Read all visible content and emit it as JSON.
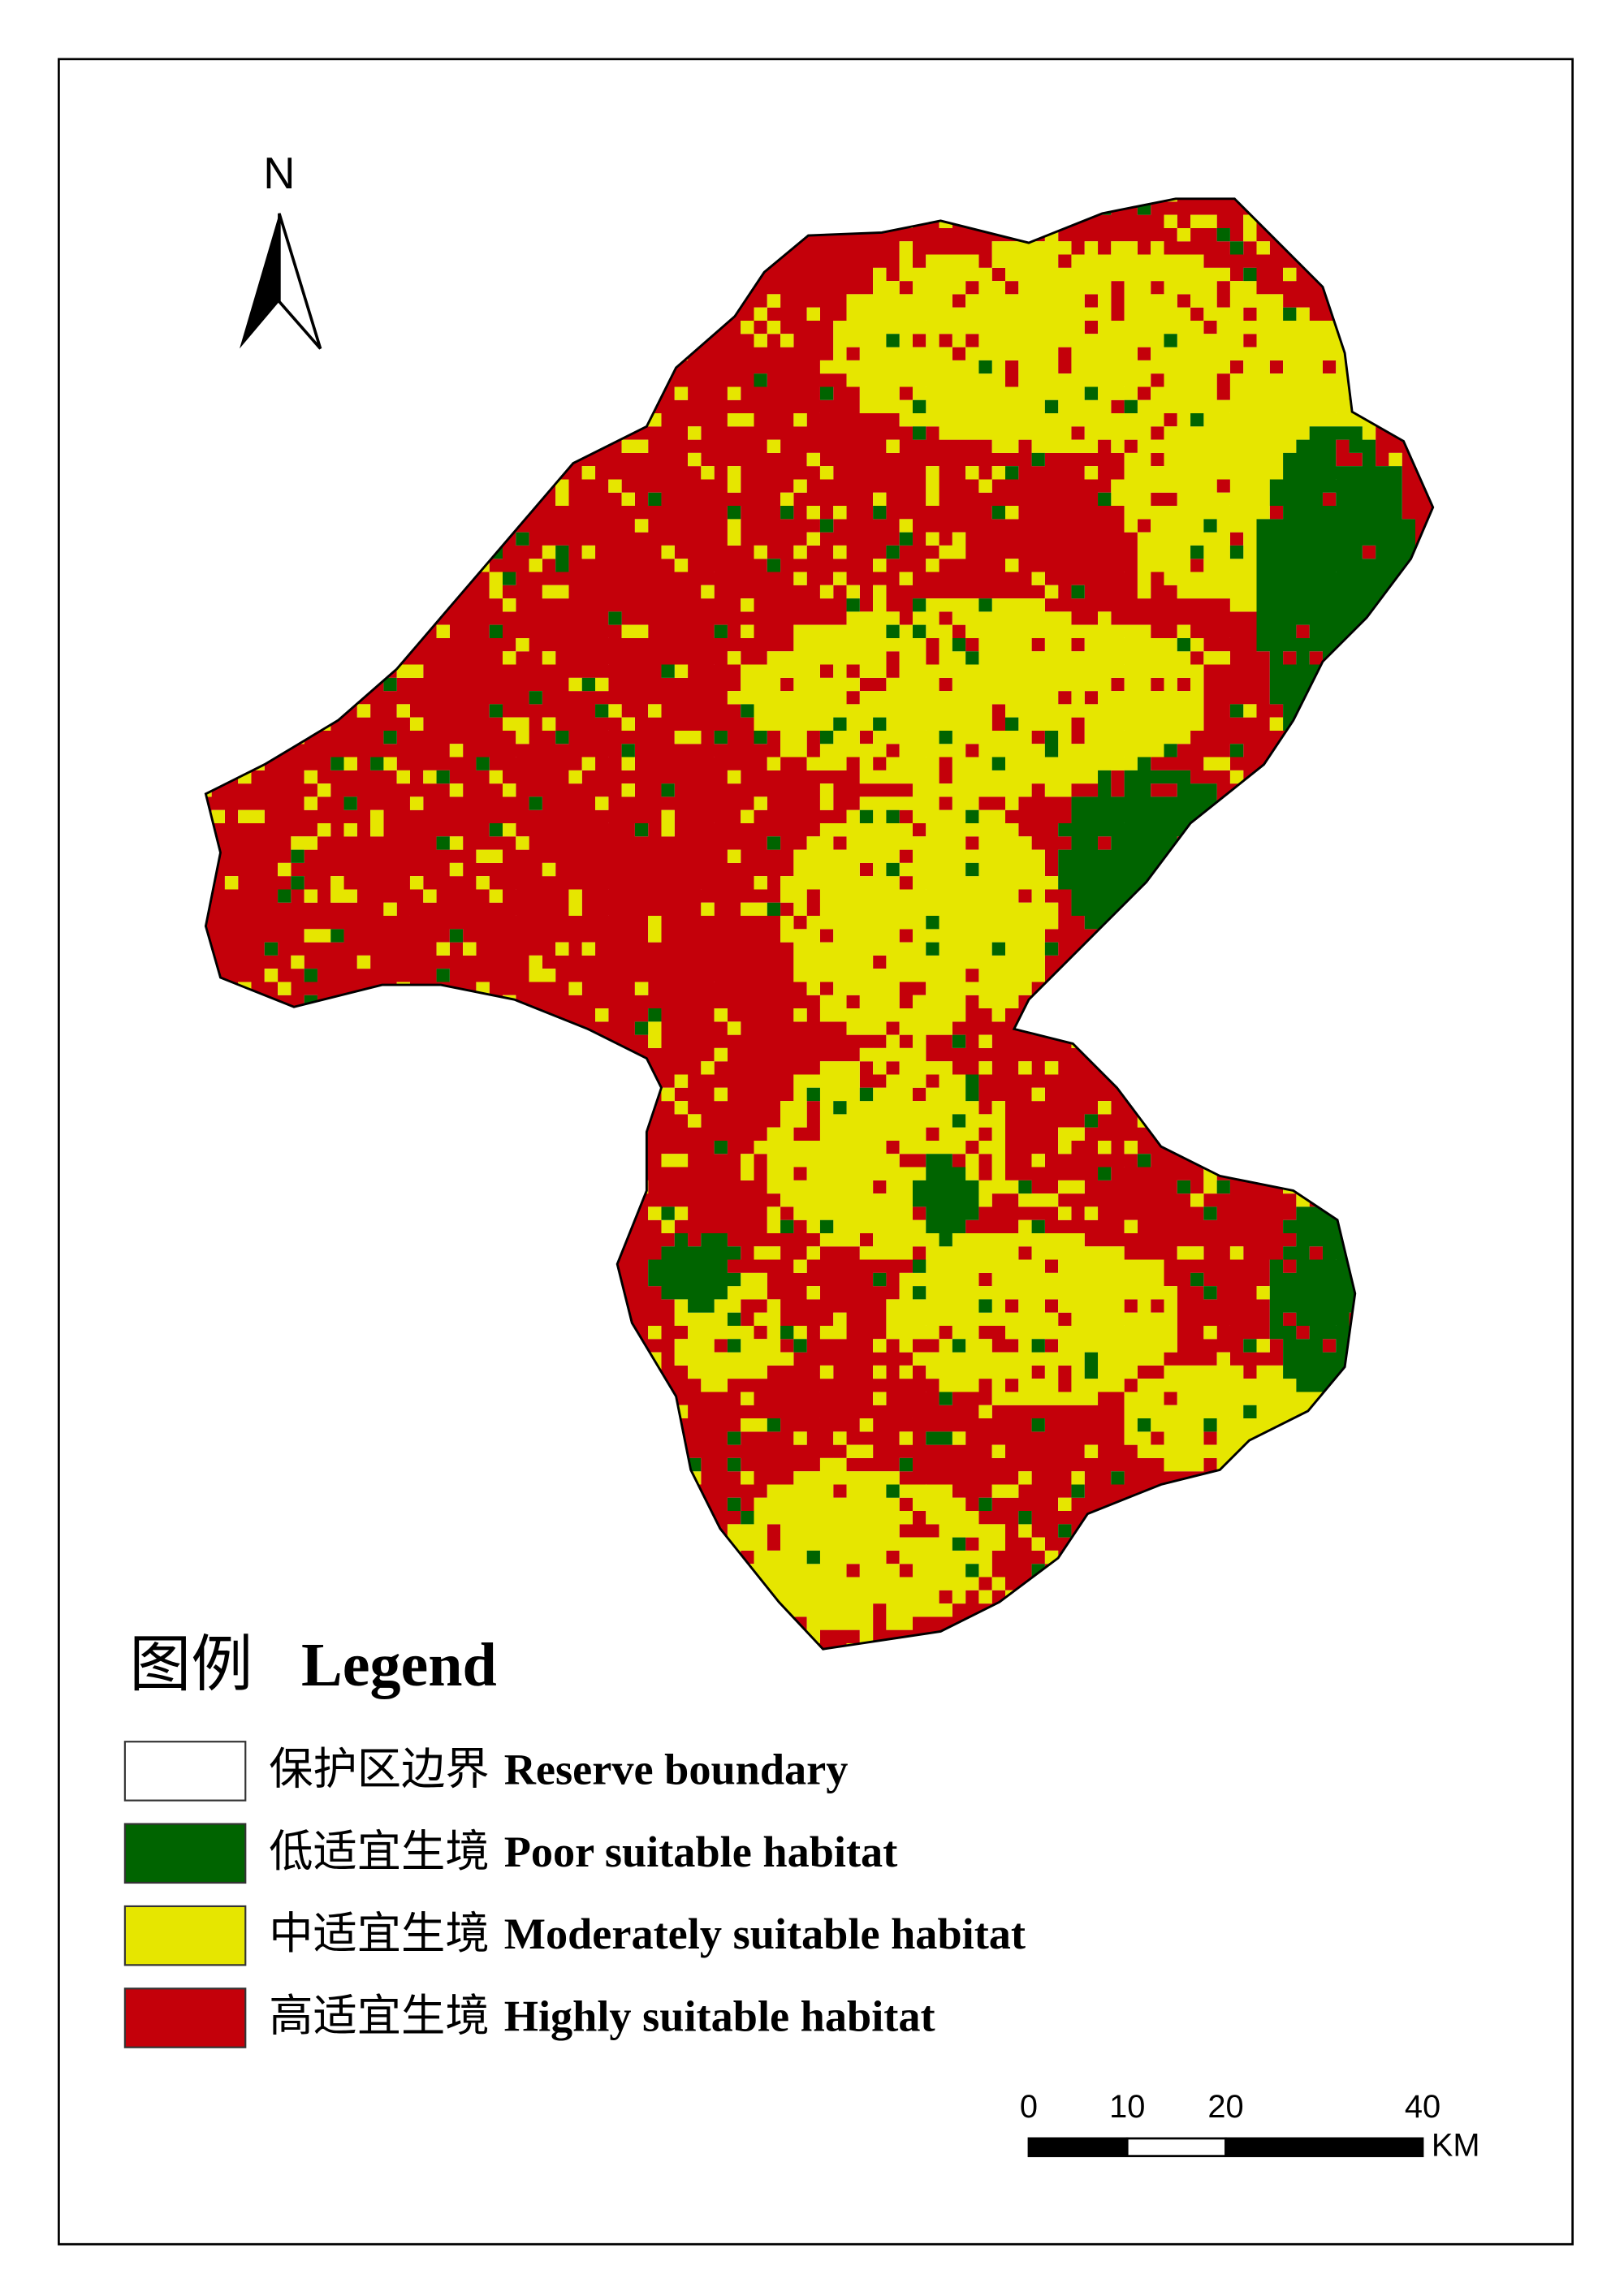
{
  "north_arrow": {
    "label": "N"
  },
  "legend": {
    "title_cn": "图例",
    "title_en": "Legend",
    "items": [
      {
        "label_cn": "保护区边界",
        "label_en": "Reserve boundary",
        "color": "#ffffff"
      },
      {
        "label_cn": "低适宜生境",
        "label_en": "Poor suitable habitat",
        "color": "#006400"
      },
      {
        "label_cn": "中适宜生境",
        "label_en": "Moderately suitable habitat",
        "color": "#e6e600"
      },
      {
        "label_cn": "高适宜生境",
        "label_en": "Highly suitable habitat",
        "color": "#c4000a"
      }
    ]
  },
  "scale_bar": {
    "ticks": [
      0,
      10,
      20,
      40
    ],
    "unit": "KM"
  }
}
